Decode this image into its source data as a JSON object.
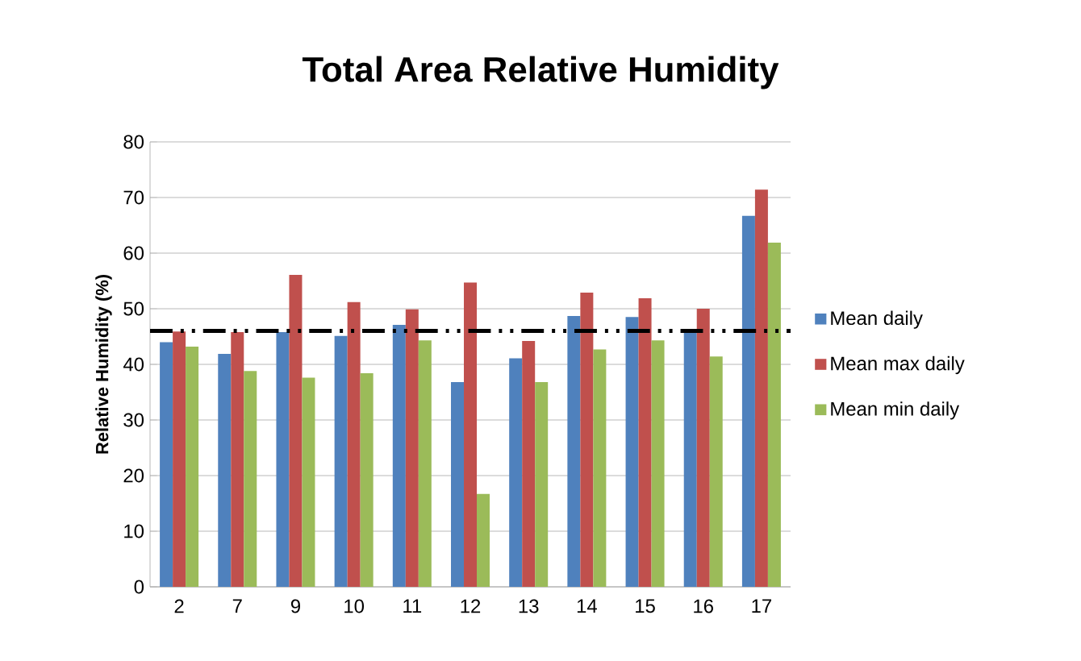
{
  "chart_data": {
    "type": "bar",
    "title": "Total Area Relative Humidity",
    "ylabel": "Relative Humidity (%)",
    "categories": [
      "2",
      "7",
      "9",
      "10",
      "11",
      "12",
      "13",
      "14",
      "15",
      "16",
      "17"
    ],
    "series": [
      {
        "name": "Mean daily",
        "color": "#4f81bd",
        "values": [
          44.0,
          41.9,
          45.8,
          45.1,
          47.1,
          36.8,
          41.1,
          48.7,
          48.5,
          45.9,
          66.7
        ]
      },
      {
        "name": "Mean max daily",
        "color": "#c0504d",
        "values": [
          45.9,
          45.8,
          56.1,
          51.2,
          49.9,
          54.7,
          44.2,
          52.9,
          51.9,
          50.0,
          71.4
        ]
      },
      {
        "name": "Mean min daily",
        "color": "#9bbb59",
        "values": [
          43.2,
          38.8,
          37.6,
          38.4,
          44.3,
          16.7,
          36.8,
          42.7,
          44.3,
          41.4,
          61.9
        ]
      }
    ],
    "ylim": [
      0,
      80
    ],
    "yticks": [
      0,
      10,
      20,
      30,
      40,
      50,
      60,
      70,
      80
    ],
    "grid": "y",
    "legend": "right",
    "ref_lines": [
      {
        "axis": "y",
        "value": 46,
        "color": "#000000",
        "line_style": "dashed"
      }
    ]
  }
}
